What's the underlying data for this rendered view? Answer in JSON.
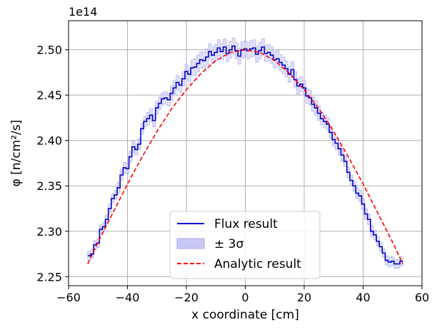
{
  "chart_data": {
    "type": "line",
    "title": "",
    "xlabel": "x coordinate [cm]",
    "ylabel": "φ [n/cm²/s]",
    "y_offset_text": "1e14",
    "y_scale": 100000000000000.0,
    "xlim": [
      -60,
      60
    ],
    "ylim": [
      2.24,
      2.532
    ],
    "x_ticks": [
      -60,
      -40,
      -20,
      0,
      20,
      40,
      60
    ],
    "x_tick_labels": [
      "−60",
      "−40",
      "−20",
      "0",
      "20",
      "40",
      "60"
    ],
    "y_ticks": [
      2.25,
      2.3,
      2.35,
      2.4,
      2.45,
      2.5
    ],
    "y_tick_labels": [
      "2.25",
      "2.30",
      "2.35",
      "2.40",
      "2.45",
      "2.50"
    ],
    "grid": true,
    "legend_position": "lower-center",
    "colors": {
      "flux": "#0000cc",
      "band": "#c8c8f4",
      "band_stroke": "#a8a8ee",
      "analytic": "#ff0000",
      "grid": "#b0b0b0",
      "axis": "#000000"
    },
    "series": [
      {
        "name": "Flux result",
        "kind": "step",
        "x_start": -53.5,
        "bin_width": 1.0,
        "values": [
          2.273,
          2.275,
          2.285,
          2.287,
          2.302,
          2.305,
          2.313,
          2.325,
          2.336,
          2.34,
          2.348,
          2.362,
          2.37,
          2.369,
          2.382,
          2.393,
          2.39,
          2.396,
          2.413,
          2.421,
          2.424,
          2.428,
          2.422,
          2.436,
          2.441,
          2.446,
          2.447,
          2.445,
          2.452,
          2.458,
          2.464,
          2.461,
          2.468,
          2.476,
          2.473,
          2.48,
          2.481,
          2.485,
          2.489,
          2.488,
          2.492,
          2.498,
          2.494,
          2.497,
          2.502,
          2.498,
          2.503,
          2.496,
          2.5,
          2.504,
          2.499,
          2.493,
          2.5,
          2.501,
          2.499,
          2.501,
          2.502,
          2.495,
          2.499,
          2.503,
          2.496,
          2.497,
          2.494,
          2.489,
          2.49,
          2.486,
          2.483,
          2.479,
          2.473,
          2.478,
          2.467,
          2.46,
          2.462,
          2.458,
          2.449,
          2.447,
          2.44,
          2.436,
          2.43,
          2.424,
          2.421,
          2.418,
          2.409,
          2.401,
          2.397,
          2.391,
          2.384,
          2.377,
          2.365,
          2.356,
          2.35,
          2.342,
          2.339,
          2.33,
          2.319,
          2.313,
          2.3,
          2.296,
          2.289,
          2.283,
          2.276,
          2.268,
          2.266,
          2.267,
          2.264,
          2.264,
          2.267
        ],
        "sigma3": [
          0.005,
          0.005,
          0.005,
          0.005,
          0.005,
          0.005,
          0.005,
          0.005,
          0.005,
          0.005,
          0.006,
          0.006,
          0.006,
          0.006,
          0.006,
          0.006,
          0.006,
          0.006,
          0.006,
          0.006,
          0.007,
          0.007,
          0.007,
          0.007,
          0.007,
          0.007,
          0.007,
          0.007,
          0.008,
          0.008,
          0.008,
          0.008,
          0.008,
          0.008,
          0.008,
          0.009,
          0.009,
          0.009,
          0.009,
          0.009,
          0.009,
          0.009,
          0.009,
          0.009,
          0.009,
          0.009,
          0.009,
          0.009,
          0.009,
          0.009,
          0.009,
          0.009,
          0.009,
          0.009,
          0.009,
          0.009,
          0.009,
          0.009,
          0.009,
          0.009,
          0.009,
          0.009,
          0.009,
          0.009,
          0.009,
          0.009,
          0.009,
          0.009,
          0.009,
          0.009,
          0.009,
          0.009,
          0.008,
          0.008,
          0.008,
          0.008,
          0.008,
          0.008,
          0.008,
          0.007,
          0.007,
          0.007,
          0.007,
          0.007,
          0.007,
          0.007,
          0.007,
          0.006,
          0.006,
          0.006,
          0.006,
          0.006,
          0.006,
          0.006,
          0.006,
          0.006,
          0.006,
          0.005,
          0.005,
          0.005,
          0.005,
          0.005,
          0.005,
          0.005,
          0.005,
          0.005,
          0.005
        ]
      },
      {
        "name": "± 3σ",
        "kind": "band"
      },
      {
        "name": "Analytic result",
        "kind": "line",
        "dash": "dashed",
        "x": [
          -53.5,
          -50,
          -45,
          -40,
          -35,
          -30,
          -25,
          -20,
          -15,
          -10,
          -5,
          0,
          5,
          10,
          15,
          20,
          25,
          30,
          35,
          40,
          45,
          50,
          53.5
        ],
        "values": [
          2.264,
          2.288,
          2.32,
          2.352,
          2.382,
          2.41,
          2.435,
          2.456,
          2.474,
          2.488,
          2.497,
          2.5,
          2.497,
          2.488,
          2.474,
          2.456,
          2.435,
          2.41,
          2.382,
          2.352,
          2.32,
          2.288,
          2.264
        ]
      }
    ]
  }
}
